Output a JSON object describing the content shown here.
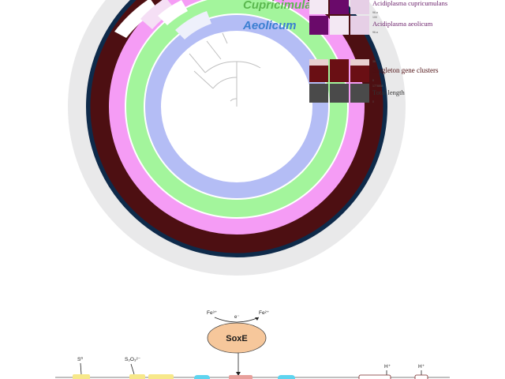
{
  "pangenome": {
    "labels": {
      "cupricimulans": "Cupricimulans",
      "aeolicum": "Aeolicum"
    },
    "legend": {
      "row_cupricimulans": "Acidiplasma cupricumulans",
      "row_aeolicum": "Acidiplasma aeolicum",
      "singleton": "Singleton gene clusters",
      "total_length": "Total length",
      "tick_96a": "96.a",
      "tick_100": "100",
      "tick_96b": "96.a",
      "tick_36": "36",
      "tick_0a": "0",
      "tick_len": "1778858",
      "tick_0b": "0"
    },
    "colors": {
      "dark_red": "#4d0f12",
      "pink": "#f59cf5",
      "green": "#a3f59c",
      "lavender": "#b4bdf5",
      "navy": "#0e2a4a",
      "grey_band": "#e9e9ea",
      "label_green": "#5bb84f",
      "label_blue": "#3b7fd1",
      "legend_text": "#6a1f6a"
    }
  },
  "pathway": {
    "enzyme": "SoxE",
    "electron": "e⁻",
    "fe_in": "Fe³⁺",
    "fe_out": "Fe²⁺",
    "sulfur": "S⁰",
    "thiosulfate": "S₂O₃²⁻",
    "proton_1": "H⁺",
    "proton_2": "H⁺",
    "colors": {
      "enzyme_fill": "#f6c79b",
      "membrane_box": "#f7e88a",
      "cyan_box": "#5fd4ef",
      "red_box": "#e8a09c"
    }
  }
}
